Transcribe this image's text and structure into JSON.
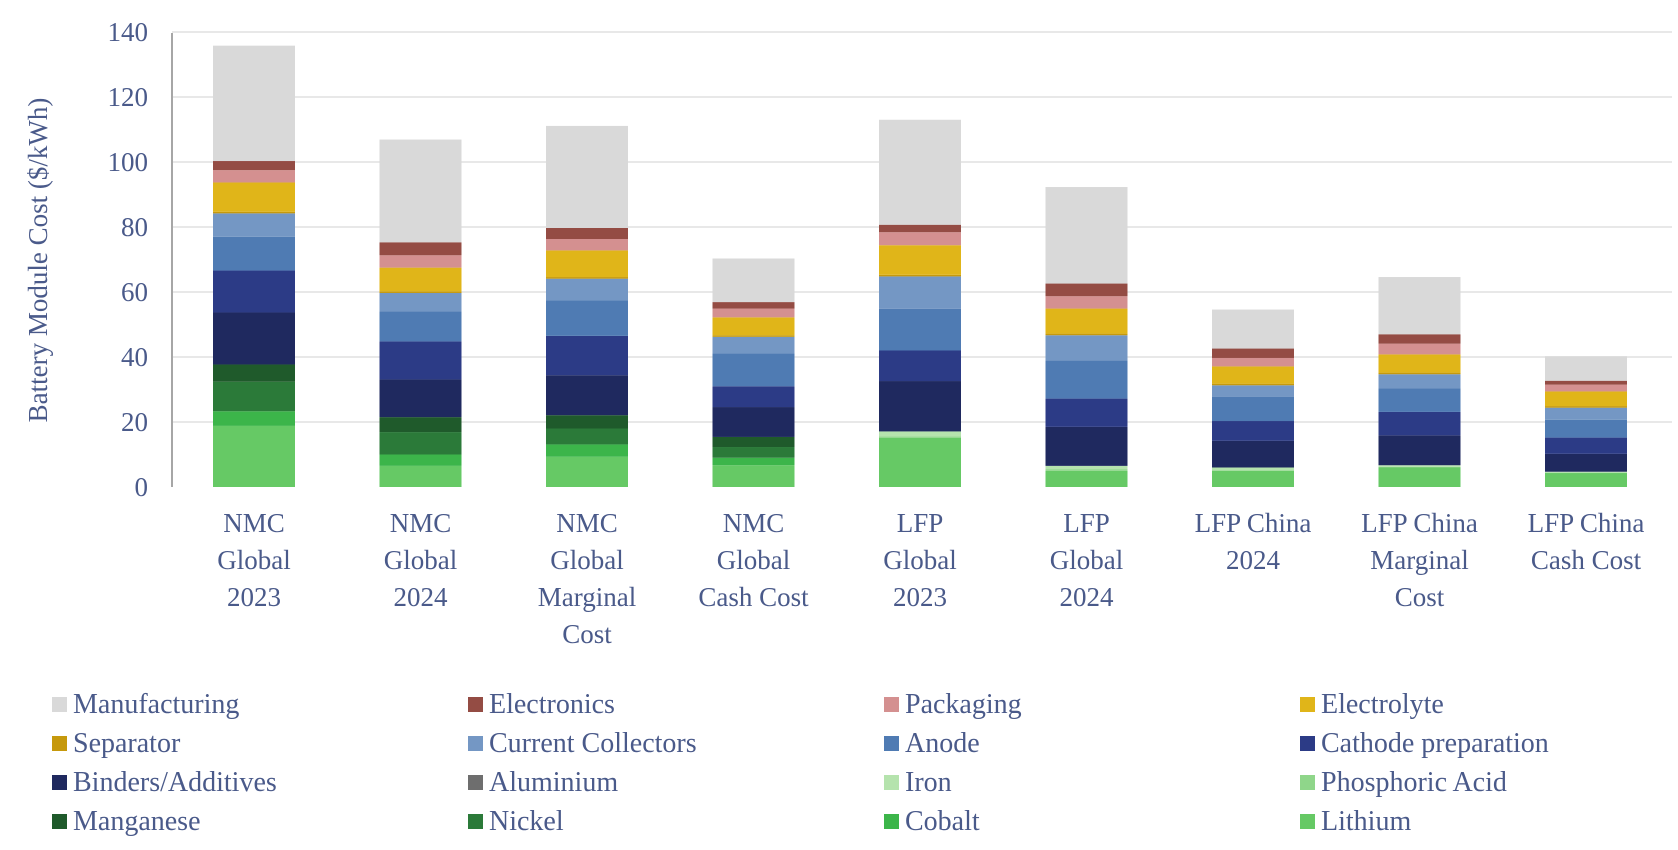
{
  "chart_data": {
    "type": "bar",
    "stacked": true,
    "title": "",
    "xlabel": "",
    "ylabel": "Battery Module Cost ($/kWh)",
    "ylim": [
      0,
      140
    ],
    "yticks": [
      0,
      20,
      40,
      60,
      80,
      100,
      120,
      140
    ],
    "grid": true,
    "legend_position": "bottom",
    "categories": [
      [
        "NMC",
        "Global",
        "2023"
      ],
      [
        "NMC",
        "Global",
        "2024"
      ],
      [
        "NMC",
        "Global",
        "Marginal",
        "Cost"
      ],
      [
        "NMC",
        "Global",
        "Cash Cost"
      ],
      [
        "LFP",
        "Global",
        "2023"
      ],
      [
        "LFP",
        "Global",
        "2024"
      ],
      [
        "LFP China",
        "2024"
      ],
      [
        "LFP China",
        "Marginal",
        "Cost"
      ],
      [
        "LFP China",
        "Cash Cost"
      ]
    ],
    "series": [
      {
        "name": "Manufacturing",
        "color": "#d9d9d9",
        "values": [
          35.5,
          31.6,
          31.4,
          13.4,
          32.3,
          29.7,
          12.0,
          17.6,
          7.5
        ]
      },
      {
        "name": "Electronics",
        "color": "#944c44",
        "values": [
          2.8,
          4.0,
          3.4,
          2.0,
          2.3,
          3.9,
          2.9,
          2.9,
          1.2
        ]
      },
      {
        "name": "Packaging",
        "color": "#d49090",
        "values": [
          3.8,
          3.8,
          3.5,
          2.7,
          4.0,
          3.8,
          2.6,
          3.3,
          2.1
        ]
      },
      {
        "name": "Electrolyte",
        "color": "#e0b519",
        "values": [
          9.0,
          7.3,
          8.2,
          5.5,
          9.1,
          7.7,
          5.3,
          5.6,
          4.5
        ]
      },
      {
        "name": "Separator",
        "color": "#c6990c",
        "values": [
          0.5,
          0.5,
          0.5,
          0.5,
          0.5,
          0.5,
          0.5,
          0.5,
          0.5
        ]
      },
      {
        "name": "Current Collectors",
        "color": "#7497c4",
        "values": [
          7.2,
          5.6,
          6.7,
          5.1,
          10.0,
          7.7,
          3.6,
          4.4,
          3.7
        ]
      },
      {
        "name": "Anode",
        "color": "#4f7bb3",
        "values": [
          10.4,
          9.3,
          10.9,
          10.1,
          12.8,
          11.8,
          7.4,
          7.2,
          5.5
        ]
      },
      {
        "name": "Cathode preparation",
        "color": "#2c3b86",
        "values": [
          12.9,
          11.7,
          12.1,
          6.4,
          9.4,
          8.7,
          6.1,
          7.2,
          5.0
        ]
      },
      {
        "name": "Binders/Additives",
        "color": "#1f295f",
        "values": [
          16.0,
          11.6,
          12.3,
          9.2,
          15.5,
          12.0,
          8.2,
          9.2,
          5.5
        ]
      },
      {
        "name": "Aluminium",
        "color": "#6e6e6e",
        "values": [
          0,
          0,
          0,
          0,
          0,
          0,
          0,
          0,
          0
        ]
      },
      {
        "name": "Iron",
        "color": "#b5e3ad",
        "values": [
          0,
          0,
          0,
          0,
          1.5,
          1.0,
          0.8,
          0.5,
          0.3
        ]
      },
      {
        "name": "Phosphoric Acid",
        "color": "#8fd68a",
        "values": [
          0,
          0,
          0,
          0,
          0.5,
          0.5,
          0.2,
          0.2,
          0.1
        ]
      },
      {
        "name": "Manganese",
        "color": "#1f5a2b",
        "values": [
          5.3,
          4.6,
          4.1,
          3.1,
          0,
          0,
          0,
          0,
          0
        ]
      },
      {
        "name": "Nickel",
        "color": "#2b7a39",
        "values": [
          9.1,
          6.9,
          4.9,
          3.3,
          0,
          0,
          0,
          0,
          0
        ]
      },
      {
        "name": "Cobalt",
        "color": "#3cb54a",
        "values": [
          4.5,
          3.5,
          3.8,
          2.3,
          0,
          0,
          0,
          0,
          0
        ]
      },
      {
        "name": "Lithium",
        "color": "#66c965",
        "values": [
          18.8,
          6.5,
          9.3,
          6.7,
          15.1,
          5.0,
          5.0,
          6.0,
          4.3
        ]
      }
    ]
  }
}
